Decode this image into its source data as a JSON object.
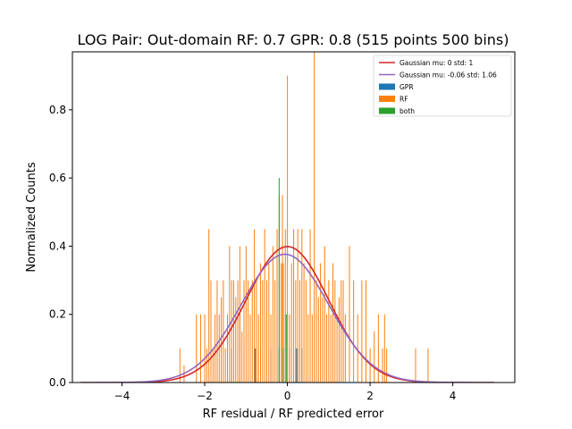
{
  "chart_data": {
    "type": "bar",
    "title": "LOG Pair: Out-domain RF: 0.7 GPR: 0.8 (515 points 500 bins)",
    "xlabel": "RF residual / RF predicted error",
    "ylabel": "Normalized Counts",
    "xlim": [
      -5.2,
      5.5
    ],
    "ylim": [
      0,
      0.97
    ],
    "xticks": [
      -4,
      -2,
      0,
      2,
      4
    ],
    "xtick_labels": [
      "−4",
      "−2",
      "0",
      "2",
      "4"
    ],
    "yticks": [
      0.0,
      0.2,
      0.4,
      0.6,
      0.8
    ],
    "ytick_labels": [
      "0.0",
      "0.2",
      "0.4",
      "0.6",
      "0.8"
    ],
    "grid": false,
    "legend_position": "top-right",
    "colors": {
      "gaussian_red": "#d62728",
      "gaussian_purple": "#9467bd",
      "gpr": "#1f77b4",
      "rf": "#ff7f0e",
      "both": "#2ca02c"
    },
    "series": [
      {
        "name": "Gaussian mu: 0 std: 1",
        "kind": "line",
        "mu": 0,
        "sigma": 1,
        "x_range": [
          -5,
          5
        ]
      },
      {
        "name": "Gaussian mu: -0.06 std: 1.06",
        "kind": "line",
        "mu": -0.06,
        "sigma": 1.06,
        "x_range": [
          -5,
          5
        ]
      },
      {
        "name": "GPR",
        "kind": "bar",
        "bin_width": 0.02,
        "points": [
          [
            -1.35,
            0.1
          ],
          [
            -1.15,
            0.2
          ],
          [
            -1.05,
            0.1
          ],
          [
            -0.8,
            0.1
          ],
          [
            -0.78,
            0.1
          ],
          [
            -0.75,
            0.1
          ],
          [
            -0.65,
            0.1
          ],
          [
            -0.4,
            0.1
          ],
          [
            -0.25,
            0.2
          ],
          [
            -0.2,
            0.1
          ],
          [
            -0.05,
            0.2
          ],
          [
            0.05,
            0.1
          ],
          [
            0.2,
            0.1
          ],
          [
            0.22,
            0.1
          ],
          [
            0.25,
            0.1
          ],
          [
            0.3,
            0.1
          ],
          [
            0.35,
            0.1
          ]
        ]
      },
      {
        "name": "RF",
        "kind": "bar",
        "bin_width": 0.02,
        "points": [
          [
            -2.6,
            0.1
          ],
          [
            -2.5,
            0.05
          ],
          [
            -2.2,
            0.2
          ],
          [
            -2.1,
            0.2
          ],
          [
            -2.0,
            0.2
          ],
          [
            -1.95,
            0.1
          ],
          [
            -1.9,
            0.45
          ],
          [
            -1.85,
            0.3
          ],
          [
            -1.8,
            0.1
          ],
          [
            -1.75,
            0.2
          ],
          [
            -1.7,
            0.3
          ],
          [
            -1.65,
            0.2
          ],
          [
            -1.6,
            0.25
          ],
          [
            -1.55,
            0.3
          ],
          [
            -1.5,
            0.1
          ],
          [
            -1.45,
            0.2
          ],
          [
            -1.4,
            0.4
          ],
          [
            -1.35,
            0.3
          ],
          [
            -1.3,
            0.3
          ],
          [
            -1.25,
            0.25
          ],
          [
            -1.2,
            0.3
          ],
          [
            -1.15,
            0.4
          ],
          [
            -1.1,
            0.15
          ],
          [
            -1.05,
            0.3
          ],
          [
            -1.0,
            0.4
          ],
          [
            -0.95,
            0.3
          ],
          [
            -0.9,
            0.2
          ],
          [
            -0.85,
            0.3
          ],
          [
            -0.8,
            0.45
          ],
          [
            -0.75,
            0.3
          ],
          [
            -0.7,
            0.2
          ],
          [
            -0.65,
            0.35
          ],
          [
            -0.6,
            0.3
          ],
          [
            -0.55,
            0.45
          ],
          [
            -0.5,
            0.3
          ],
          [
            -0.45,
            0.35
          ],
          [
            -0.4,
            0.2
          ],
          [
            -0.35,
            0.4
          ],
          [
            -0.3,
            0.3
          ],
          [
            -0.25,
            0.45
          ],
          [
            -0.2,
            0.55
          ],
          [
            -0.15,
            0.35
          ],
          [
            -0.12,
            0.55
          ],
          [
            -0.1,
            0.35
          ],
          [
            -0.05,
            0.45
          ],
          [
            0.0,
            0.9
          ],
          [
            0.05,
            0.2
          ],
          [
            0.1,
            0.35
          ],
          [
            0.15,
            0.45
          ],
          [
            0.2,
            0.3
          ],
          [
            0.25,
            0.45
          ],
          [
            0.3,
            0.3
          ],
          [
            0.35,
            0.45
          ],
          [
            0.4,
            0.35
          ],
          [
            0.45,
            0.3
          ],
          [
            0.5,
            0.2
          ],
          [
            0.55,
            0.45
          ],
          [
            0.6,
            0.2
          ],
          [
            0.65,
            0.97
          ],
          [
            0.7,
            0.3
          ],
          [
            0.75,
            0.25
          ],
          [
            0.8,
            0.35
          ],
          [
            0.85,
            0.25
          ],
          [
            0.9,
            0.4
          ],
          [
            0.95,
            0.2
          ],
          [
            1.0,
            0.3
          ],
          [
            1.05,
            0.2
          ],
          [
            1.1,
            0.35
          ],
          [
            1.15,
            0.3
          ],
          [
            1.2,
            0.2
          ],
          [
            1.25,
            0.25
          ],
          [
            1.3,
            0.3
          ],
          [
            1.35,
            0.3
          ],
          [
            1.4,
            0.2
          ],
          [
            1.5,
            0.4
          ],
          [
            1.6,
            0.3
          ],
          [
            1.7,
            0.2
          ],
          [
            1.8,
            0.3
          ],
          [
            1.9,
            0.3
          ],
          [
            2.0,
            0.1
          ],
          [
            2.1,
            0.15
          ],
          [
            2.2,
            0.2
          ],
          [
            2.3,
            0.1
          ],
          [
            2.35,
            0.2
          ],
          [
            2.4,
            0.1
          ],
          [
            3.1,
            0.1
          ],
          [
            3.4,
            0.1
          ]
        ]
      },
      {
        "name": "both",
        "kind": "bar",
        "bin_width": 0.02,
        "points": [
          [
            -0.2,
            0.1
          ],
          [
            -0.1,
            0.1
          ],
          [
            -0.02,
            0.2
          ],
          [
            -0.2,
            0.6
          ]
        ]
      }
    ]
  }
}
